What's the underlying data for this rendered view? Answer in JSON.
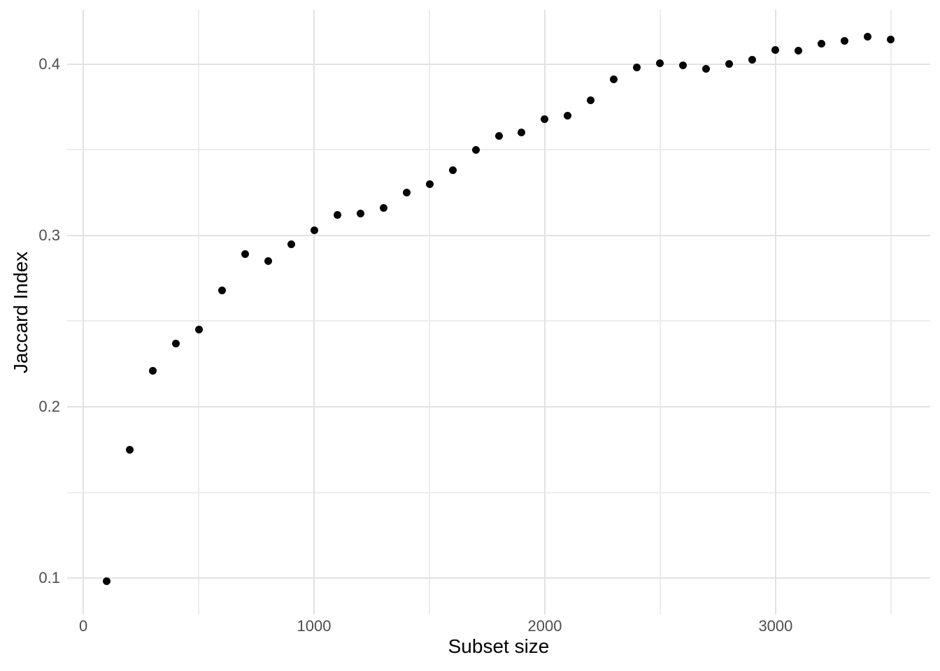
{
  "chart_data": {
    "type": "scatter",
    "title": "",
    "xlabel": "Subset size",
    "ylabel": "Jaccard Index",
    "grid": "on",
    "legend": "none",
    "point_color": "#050505",
    "background_color": "#ffffff",
    "major_grid_color": "#e2e2e2",
    "minor_grid_color": "#ececec",
    "tick_label_color": "#4d4d4d",
    "axis_title_color": "#000000",
    "xlim": [
      -70,
      3670
    ],
    "ylim": [
      0.0788,
      0.4318
    ],
    "x_ticks": [
      {
        "value": 0,
        "label": "0"
      },
      {
        "value": 1000,
        "label": "1000"
      },
      {
        "value": 2000,
        "label": "2000"
      },
      {
        "value": 3000,
        "label": "3000"
      }
    ],
    "y_ticks": [
      {
        "value": 0.1,
        "label": "0.1"
      },
      {
        "value": 0.2,
        "label": "0.2"
      },
      {
        "value": 0.3,
        "label": "0.3"
      },
      {
        "value": 0.4,
        "label": "0.4"
      }
    ],
    "x_minor_gridlines": [
      500,
      1500,
      2500,
      3500
    ],
    "y_minor_gridlines": [
      0.15,
      0.25,
      0.35
    ],
    "points": [
      [
        100,
        0.098
      ],
      [
        200,
        0.175
      ],
      [
        300,
        0.221
      ],
      [
        400,
        0.237
      ],
      [
        500,
        0.245
      ],
      [
        600,
        0.268
      ],
      [
        700,
        0.289
      ],
      [
        800,
        0.285
      ],
      [
        900,
        0.295
      ],
      [
        1000,
        0.303
      ],
      [
        1100,
        0.312
      ],
      [
        1200,
        0.313
      ],
      [
        1300,
        0.316
      ],
      [
        1400,
        0.325
      ],
      [
        1500,
        0.33
      ],
      [
        1600,
        0.338
      ],
      [
        1700,
        0.35
      ],
      [
        1800,
        0.358
      ],
      [
        1900,
        0.36
      ],
      [
        2000,
        0.368
      ],
      [
        2100,
        0.37
      ],
      [
        2200,
        0.379
      ],
      [
        2300,
        0.391
      ],
      [
        2400,
        0.398
      ],
      [
        2500,
        0.4005
      ],
      [
        2600,
        0.3995
      ],
      [
        2700,
        0.3975
      ],
      [
        2800,
        0.4
      ],
      [
        2900,
        0.4025
      ],
      [
        3000,
        0.4085
      ],
      [
        3100,
        0.408
      ],
      [
        3200,
        0.412
      ],
      [
        3300,
        0.4135
      ],
      [
        3400,
        0.416
      ],
      [
        3500,
        0.4145
      ]
    ]
  }
}
